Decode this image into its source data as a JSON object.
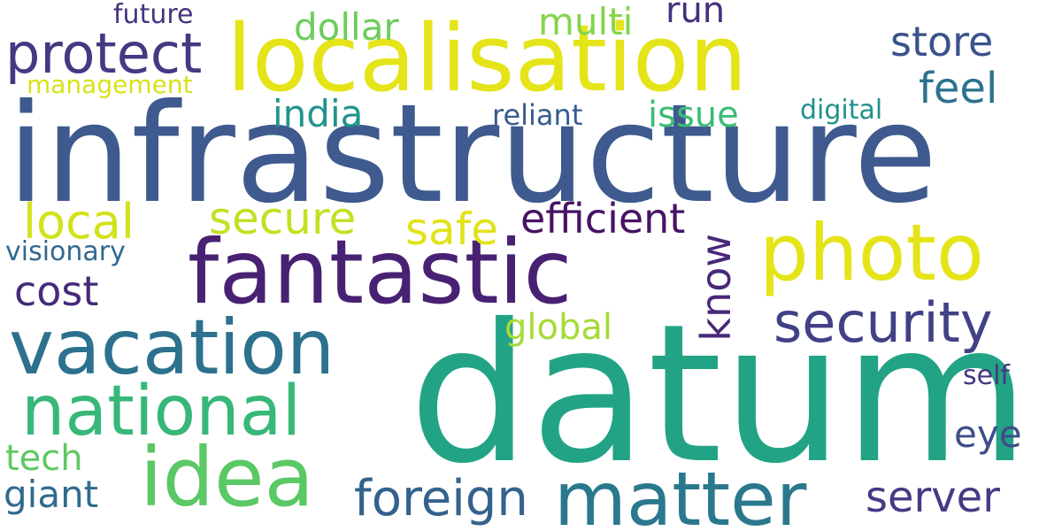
{
  "words": {
    "infrastructure": {
      "text": "infrastructure",
      "color": "#3e5a8e"
    },
    "datum": {
      "text": "datum",
      "color": "#22a386"
    },
    "localisation": {
      "text": "localisation",
      "color": "#e5e419"
    },
    "fantastic": {
      "text": "fantastic",
      "color": "#482173"
    },
    "photo": {
      "text": "photo",
      "color": "#e5e419"
    },
    "vacation": {
      "text": "vacation",
      "color": "#2c718e"
    },
    "matter": {
      "text": "matter",
      "color": "#2a788e"
    },
    "idea": {
      "text": "idea",
      "color": "#5ac864"
    },
    "national": {
      "text": "national",
      "color": "#37b779"
    },
    "protect": {
      "text": "protect",
      "color": "#443983"
    },
    "security": {
      "text": "security",
      "color": "#424086"
    },
    "foreign": {
      "text": "foreign",
      "color": "#33628d"
    },
    "store": {
      "text": "store",
      "color": "#3b528b"
    },
    "know": {
      "text": "know",
      "color": "#482878"
    },
    "efficient": {
      "text": "efficient",
      "color": "#471365"
    },
    "secure": {
      "text": "secure",
      "color": "#c5df22"
    },
    "local": {
      "text": "local",
      "color": "#d2e21b"
    },
    "safe": {
      "text": "safe",
      "color": "#e1e31a"
    },
    "feel": {
      "text": "feel",
      "color": "#2c728e"
    },
    "server": {
      "text": "server",
      "color": "#443a83"
    },
    "cost": {
      "text": "cost",
      "color": "#472a7a"
    },
    "dollar": {
      "text": "dollar",
      "color": "#6ccd5a"
    },
    "multi": {
      "text": "multi",
      "color": "#84d44b"
    },
    "issue": {
      "text": "issue",
      "color": "#3bbb75"
    },
    "india": {
      "text": "india",
      "color": "#1f958b"
    },
    "giant": {
      "text": "giant",
      "color": "#2f6b8e"
    },
    "global": {
      "text": "global",
      "color": "#a5db36"
    },
    "eye": {
      "text": "eye",
      "color": "#3e4c8a"
    },
    "run": {
      "text": "run",
      "color": "#46307e"
    },
    "tech": {
      "text": "tech",
      "color": "#5ec962"
    },
    "reliant": {
      "text": "reliant",
      "color": "#365c8d"
    },
    "digital": {
      "text": "digital",
      "color": "#21918c"
    },
    "visionary": {
      "text": "visionary",
      "color": "#31688e"
    },
    "future": {
      "text": "future",
      "color": "#46337f"
    },
    "management": {
      "text": "management",
      "color": "#d8e219"
    },
    "self": {
      "text": "self",
      "color": "#453781"
    }
  }
}
